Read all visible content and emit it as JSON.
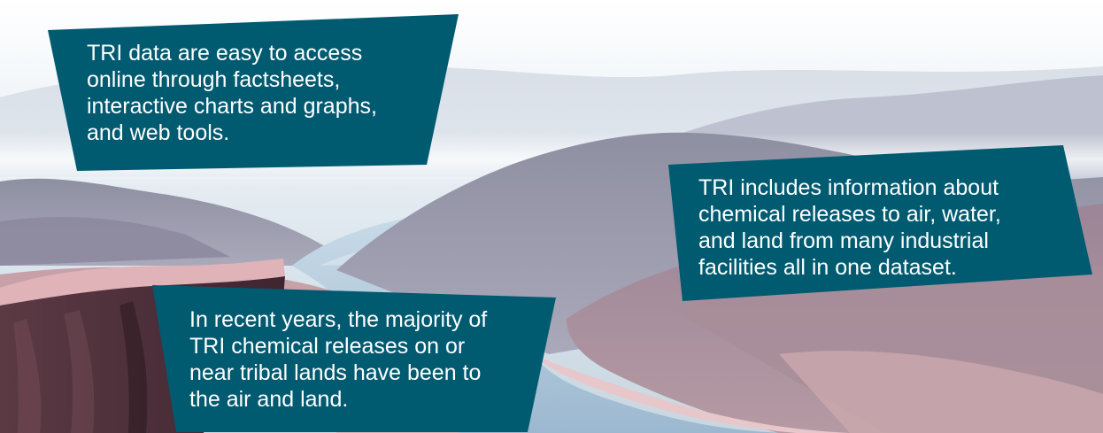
{
  "colors": {
    "callout_fill": "#005a70",
    "callout_text": "#ffffff",
    "sky_top": "#f4f7fa",
    "sky_bottom": "#cfdde6",
    "river": "#a9c3d8",
    "cliff": "#4a2e36",
    "cliff_top": "#d9a9ae",
    "mountain_mauve": "#a48d99",
    "mountain_grey": "#9a99a9"
  },
  "callouts": [
    {
      "text": "TRI data are easy to access\nonline through factsheets,\ninteractive charts and graphs,\nand web tools."
    },
    {
      "text": "TRI includes information about\nchemical releases to air, water,\nand land from many industrial\nfacilities all in one dataset."
    },
    {
      "text": "In recent years, the majority of\nTRI chemical releases on or\nnear tribal lands have been to\nthe air and land."
    }
  ]
}
